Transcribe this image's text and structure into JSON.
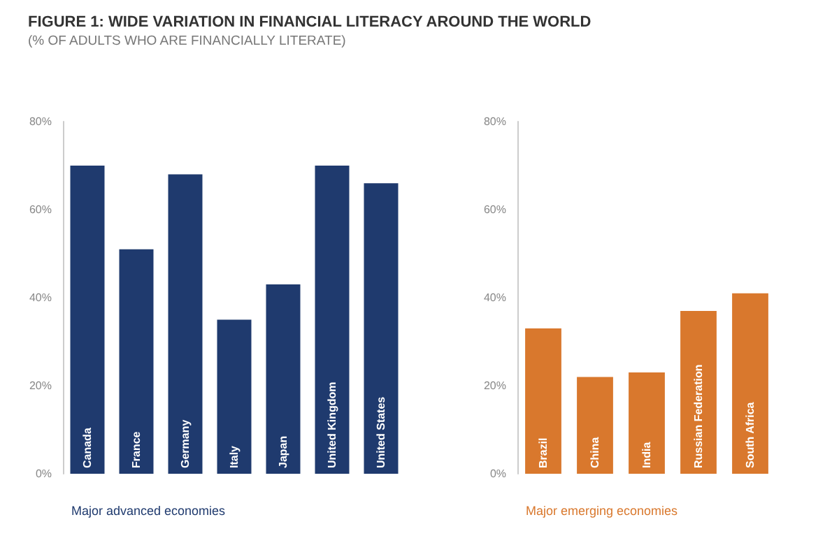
{
  "chart_data": [
    {
      "type": "bar",
      "title": "FIGURE 1: WIDE VARIATION IN FINANCIAL LITERACY AROUND THE WORLD",
      "subtitle": "(% OF ADULTS WHO ARE FINANCIALLY LITERATE)",
      "xlabel": "Major advanced economies",
      "categories": [
        "Canada",
        "France",
        "Germany",
        "Italy",
        "Japan",
        "United Kingdom",
        "United States"
      ],
      "values": [
        70,
        51,
        68,
        35,
        43,
        70,
        66
      ],
      "color": "#1f3a6e",
      "ylim": [
        0,
        80
      ],
      "yticks": [
        {
          "value": 0,
          "label": "0%"
        },
        {
          "value": 20,
          "label": "20%"
        },
        {
          "value": 40,
          "label": "40%"
        },
        {
          "value": 60,
          "label": "60%"
        },
        {
          "value": 80,
          "label": "80%"
        }
      ],
      "grid": false
    },
    {
      "type": "bar",
      "xlabel": "Major emerging economies",
      "categories": [
        "Brazil",
        "China",
        "India",
        "Russian Federation",
        "South Africa"
      ],
      "values": [
        33,
        22,
        23,
        37,
        41
      ],
      "color": "#d9782d",
      "ylim": [
        0,
        80
      ],
      "yticks": [
        {
          "value": 0,
          "label": "0%"
        },
        {
          "value": 20,
          "label": "20%"
        },
        {
          "value": 40,
          "label": "40%"
        },
        {
          "value": 60,
          "label": "60%"
        },
        {
          "value": 80,
          "label": "80%"
        }
      ],
      "grid": false
    }
  ]
}
